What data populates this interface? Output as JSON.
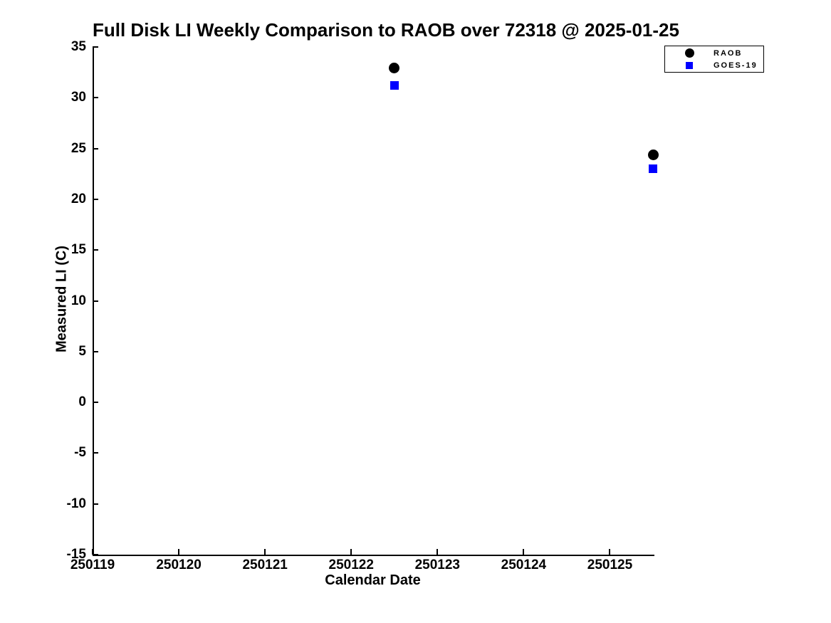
{
  "chart_data": {
    "type": "scatter",
    "title": "Full Disk LI Weekly Comparison to RAOB over 72318 @ 2025-01-25",
    "xlabel": "Calendar Date",
    "ylabel": "Measured LI (C)",
    "xlim": [
      250119,
      250125.5
    ],
    "ylim": [
      -15,
      35
    ],
    "x_ticks": [
      250119,
      250120,
      250121,
      250122,
      250123,
      250124,
      250125
    ],
    "y_ticks": [
      35,
      30,
      25,
      20,
      15,
      10,
      5,
      0,
      -5,
      -10,
      -15
    ],
    "grid": false,
    "box": false,
    "legend_position": "top-right-outside",
    "series": [
      {
        "name": "RAOB",
        "marker": "circle",
        "color": "#000000",
        "x": [
          250122.5,
          250125.5
        ],
        "y": [
          32.9,
          24.4
        ]
      },
      {
        "name": "GOES-19",
        "marker": "square",
        "color": "#0000ff",
        "x": [
          250122.5,
          250125.5
        ],
        "y": [
          31.2,
          23.0
        ]
      }
    ]
  },
  "colors": {
    "background": "#ffffff",
    "axis": "#000000",
    "text": "#000000",
    "raob": "#000000",
    "goes19": "#0000ff"
  }
}
